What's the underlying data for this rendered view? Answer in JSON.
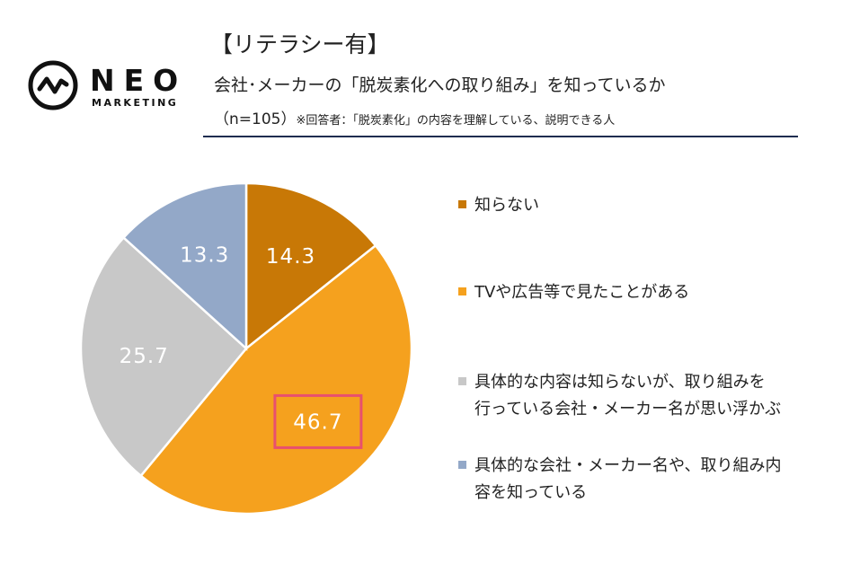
{
  "header": {
    "brand": "NEO",
    "brand_sub": "MARKETING",
    "title": "【リテラシー有】",
    "subtitle": "会社･メーカーの「脱炭素化への取り組み」を知っているか",
    "note_main": "（n=105）",
    "note_small": "※回答者：「脱炭素化」の内容を理解している、説明できる人"
  },
  "chart_data": {
    "type": "pie",
    "title": "",
    "slices": [
      {
        "label": "知らない",
        "value": 14.3,
        "value_label": "14.3",
        "color": "#c87806"
      },
      {
        "label": "TVや広告等で見たことがある",
        "value": 46.7,
        "value_label": "46.7",
        "color": "#f5a11e",
        "highlighted": true
      },
      {
        "label": "具体的な内容は知らないが、取り組みを\n行っている会社・メーカー名が思い浮かぶ",
        "value": 25.7,
        "value_label": "25.7",
        "color": "#c8c8c8"
      },
      {
        "label": "具体的な会社・メーカー名や、取り組み内\n容を知っている",
        "value": 13.3,
        "value_label": "13.3",
        "color": "#93a8c8"
      }
    ],
    "start": "12 o'clock",
    "direction": "clockwise",
    "legend_position": "right",
    "highlight_color": "#e8506e"
  }
}
